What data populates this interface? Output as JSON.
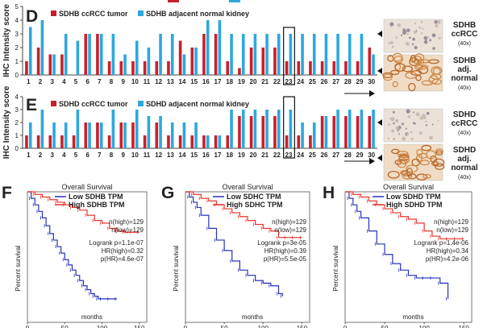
{
  "colors": {
    "tumor": "#c8202b",
    "normal": "#2ca8de",
    "low": "#2732b8",
    "high": "#e8342f"
  },
  "chart_data": [
    {
      "type": "bar",
      "panel": "D",
      "ylabel": "IHC Intensity score",
      "ylim": [
        0,
        5
      ],
      "yticks": [
        0,
        1,
        2,
        3,
        4,
        5
      ],
      "categories": [
        "1",
        "2",
        "3",
        "4",
        "5",
        "6",
        "7",
        "8",
        "9",
        "10",
        "11",
        "12",
        "13",
        "14",
        "15",
        "16",
        "17",
        "18",
        "19",
        "20",
        "21",
        "22",
        "23",
        "24",
        "25",
        "26",
        "27",
        "28",
        "29",
        "30"
      ],
      "highlight_category": "23",
      "series": [
        {
          "name": "SDHB ccRCC tumor",
          "color": "tumor",
          "values": [
            1,
            2,
            1.5,
            1.5,
            0,
            3,
            3,
            1,
            1,
            1,
            1,
            1,
            1,
            2.5,
            2,
            3,
            3,
            1,
            0.5,
            2,
            2,
            2,
            1,
            1,
            1,
            1,
            1,
            1,
            1,
            2
          ]
        },
        {
          "name": "SDHB adjacent normal kidney",
          "color": "normal",
          "values": [
            3.5,
            4,
            1.5,
            3,
            2.5,
            3,
            3,
            3,
            1.5,
            2.5,
            2,
            3,
            3,
            1.5,
            2,
            4,
            4,
            3,
            3,
            3,
            3,
            3,
            3,
            3,
            3,
            3,
            3,
            3,
            3,
            1.5
          ]
        }
      ],
      "images": [
        {
          "title": "SDHB ccRCC",
          "mag": "(40x)"
        },
        {
          "title": "SDHB adj. normal",
          "mag": "(40x)"
        }
      ]
    },
    {
      "type": "bar",
      "panel": "E",
      "ylabel": "IHC Intensity score",
      "ylim": [
        0,
        4
      ],
      "yticks": [
        0,
        1,
        2,
        3,
        4
      ],
      "categories": [
        "1",
        "2",
        "3",
        "4",
        "5",
        "6",
        "7",
        "8",
        "9",
        "10",
        "11",
        "12",
        "13",
        "14",
        "15",
        "16",
        "17",
        "18",
        "19",
        "20",
        "21",
        "22",
        "23",
        "24",
        "25",
        "26",
        "27",
        "28",
        "29",
        "30"
      ],
      "highlight_category": "23",
      "series": [
        {
          "name": "SDHD ccRCC tumor",
          "color": "tumor",
          "values": [
            1,
            1,
            1,
            1,
            1,
            2,
            2,
            1,
            2,
            2,
            1,
            2,
            1,
            1,
            1,
            1,
            1,
            1,
            2.5,
            2.5,
            2.5,
            2.5,
            1,
            1,
            1,
            2.5,
            2.5,
            2.5,
            2.5,
            2.5
          ]
        },
        {
          "name": "SDHD adjacent normal kidney",
          "color": "normal",
          "values": [
            2,
            3,
            2,
            2,
            3,
            2,
            2,
            3,
            2,
            3,
            2.5,
            2.5,
            2,
            2,
            2,
            1,
            1,
            3,
            3,
            3,
            3,
            3,
            3,
            2,
            2,
            2.5,
            3,
            3,
            3,
            3
          ]
        }
      ],
      "images": [
        {
          "title": "SDHD ccRCC",
          "mag": "(40x)"
        },
        {
          "title": "SDHD adj. normal",
          "mag": "(40x)"
        }
      ]
    },
    {
      "type": "line",
      "panel": "F",
      "title": "Overall Survival",
      "xlabel": "months",
      "ylabel": "Percent survival",
      "xlim": [
        0,
        160
      ],
      "xticks": [
        0,
        50,
        100,
        150
      ],
      "ylim": [
        0,
        1
      ],
      "legend": [
        "Low SDHB TPM",
        "High SDHB TPM"
      ],
      "stats": [
        "n(high)=129",
        "n(low)=129",
        "Logrank p=1.1e-07",
        "HR(high)=0.32",
        "p(HR)=4.6e-07"
      ],
      "series": [
        {
          "name": "Low SDHB TPM",
          "color": "low",
          "x": [
            0,
            5,
            10,
            15,
            20,
            25,
            30,
            35,
            40,
            45,
            50,
            55,
            60,
            65,
            70,
            75,
            80,
            85,
            90,
            95,
            100,
            110,
            120
          ],
          "y": [
            1,
            0.95,
            0.9,
            0.85,
            0.8,
            0.74,
            0.68,
            0.63,
            0.58,
            0.53,
            0.48,
            0.44,
            0.4,
            0.36,
            0.32,
            0.28,
            0.25,
            0.22,
            0.2,
            0.18,
            0.18,
            0.18,
            0.18
          ]
        },
        {
          "name": "High SDHB TPM",
          "color": "high",
          "x": [
            0,
            10,
            20,
            30,
            40,
            50,
            60,
            70,
            80,
            90,
            100,
            110,
            120,
            130,
            140,
            150
          ],
          "y": [
            1,
            0.98,
            0.96,
            0.94,
            0.92,
            0.9,
            0.88,
            0.86,
            0.82,
            0.78,
            0.76,
            0.72,
            0.7,
            0.69,
            0.69,
            0.69
          ]
        }
      ]
    },
    {
      "type": "line",
      "panel": "G",
      "title": "Overall Survival",
      "xlabel": "months",
      "ylabel": "Percent survival",
      "xlim": [
        0,
        160
      ],
      "xticks": [
        0,
        50,
        100,
        150
      ],
      "ylim": [
        0,
        1
      ],
      "legend": [
        "Low SDHC TPM",
        "High SDHC TPM"
      ],
      "stats": [
        "n(high)=129",
        "n(low)=129",
        "Logrank p=3e-05",
        "HR(high)=0.39",
        "p(HR)=5.5e-05"
      ],
      "series": [
        {
          "name": "Low SDHC TPM",
          "color": "low",
          "x": [
            0,
            5,
            10,
            15,
            20,
            30,
            40,
            50,
            60,
            70,
            80,
            90,
            100,
            110,
            120,
            125
          ],
          "y": [
            1,
            0.96,
            0.92,
            0.88,
            0.82,
            0.72,
            0.63,
            0.55,
            0.47,
            0.4,
            0.36,
            0.32,
            0.3,
            0.28,
            0.22,
            0.2
          ]
        },
        {
          "name": "High SDHC TPM",
          "color": "high",
          "x": [
            0,
            10,
            20,
            30,
            40,
            50,
            60,
            70,
            80,
            90,
            100,
            110,
            120,
            130,
            140,
            150
          ],
          "y": [
            1,
            0.98,
            0.95,
            0.93,
            0.9,
            0.87,
            0.84,
            0.81,
            0.78,
            0.75,
            0.72,
            0.7,
            0.65,
            0.65,
            0.65,
            0.65
          ]
        }
      ]
    },
    {
      "type": "line",
      "panel": "H",
      "title": "Overall Survival",
      "xlabel": "months",
      "ylabel": "Percent survival",
      "xlim": [
        0,
        160
      ],
      "xticks": [
        0,
        50,
        100,
        150
      ],
      "ylim": [
        0,
        1
      ],
      "legend": [
        "Low SDHD TPM",
        "High SDHD TPM"
      ],
      "stats": [
        "n(high)=129",
        "n(low)=129",
        "Logrank p=1.4e-06",
        "HR(high)=0.34",
        "p(HR)=4.2e-06"
      ],
      "series": [
        {
          "name": "Low SDHD TPM",
          "color": "low",
          "x": [
            0,
            5,
            10,
            15,
            20,
            30,
            40,
            50,
            60,
            70,
            80,
            90,
            100,
            110,
            120,
            130
          ],
          "y": [
            1,
            0.95,
            0.9,
            0.85,
            0.8,
            0.7,
            0.6,
            0.52,
            0.45,
            0.4,
            0.36,
            0.34,
            0.34,
            0.34,
            0.3,
            0.18
          ]
        },
        {
          "name": "High SDHD TPM",
          "color": "high",
          "x": [
            0,
            10,
            20,
            30,
            40,
            50,
            60,
            70,
            80,
            90,
            100,
            110,
            120,
            130,
            140,
            150
          ],
          "y": [
            1,
            0.98,
            0.96,
            0.93,
            0.9,
            0.87,
            0.84,
            0.81,
            0.79,
            0.76,
            0.7,
            0.66,
            0.64,
            0.64,
            0.64,
            0.64
          ]
        }
      ]
    }
  ]
}
